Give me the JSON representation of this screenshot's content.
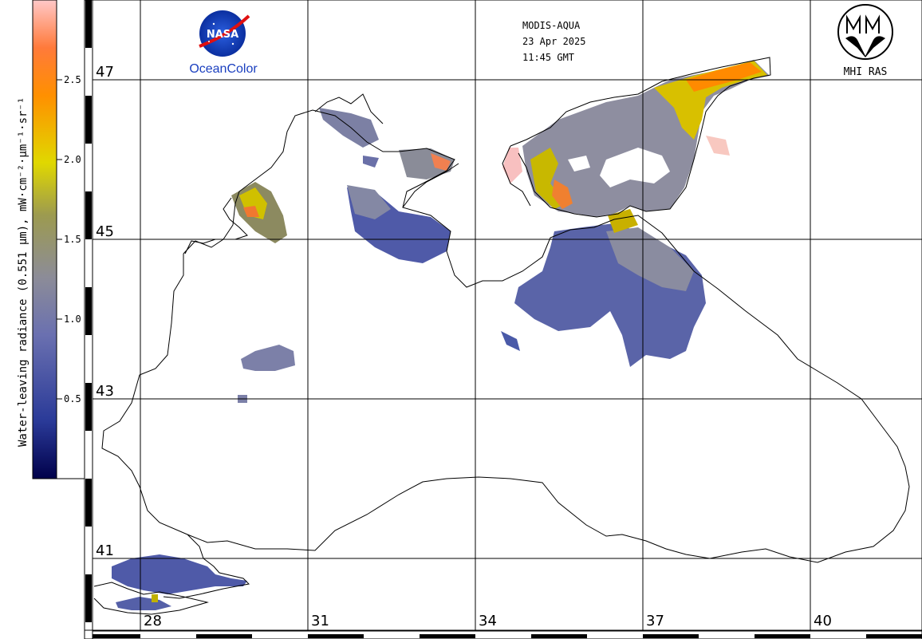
{
  "header": {
    "sensor": "MODIS-AQUA",
    "date": "23 Apr 2025",
    "time": "11:45 GMT"
  },
  "logos": {
    "nasa_text": "NASA",
    "oceancolor_text": "OceanColor",
    "mhi_text": "MHI RAS"
  },
  "colorbar": {
    "title": "Water-leaving radiance (0.551 μm), mW·cm⁻²·μm⁻¹·sr⁻¹",
    "ticks": [
      "2.5",
      "2.0",
      "1.5",
      "1.0",
      "0.5"
    ],
    "colors": [
      "#ffc0c0",
      "#ff8000",
      "#e8e000",
      "#8a8a70",
      "#6068b8",
      "#000050"
    ]
  },
  "grid": {
    "latitudes": [
      "47",
      "45",
      "43",
      "41"
    ],
    "longitudes": [
      "28",
      "31",
      "34",
      "37",
      "40"
    ]
  },
  "map_colors": {
    "low": "#4a5aa8",
    "mid": "#8e90a0",
    "high": "#c8c000",
    "peak": "#ff8a00",
    "coast": "#000000"
  }
}
